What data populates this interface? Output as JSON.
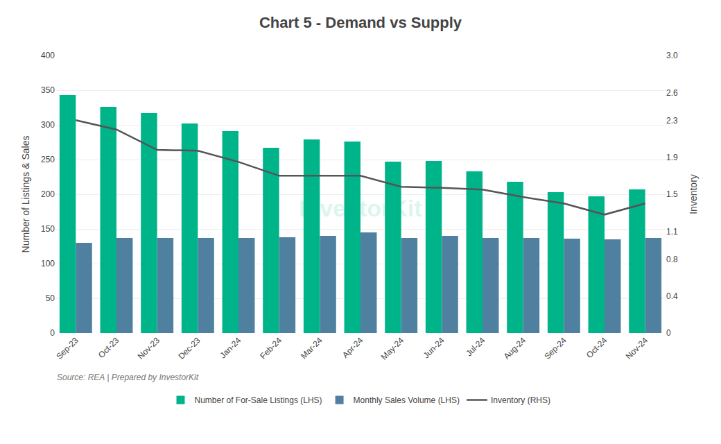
{
  "chart_data": {
    "type": "bar",
    "title": "Chart 5 - Demand vs Supply",
    "categories": [
      "Sep-23",
      "Oct-23",
      "Nov-23",
      "Dec-23",
      "Jan-24",
      "Feb-24",
      "Mar-24",
      "Apr-24",
      "May-24",
      "Jun-24",
      "Jul-24",
      "Aug-24",
      "Sep-24",
      "Oct-24",
      "Nov-24"
    ],
    "series": [
      {
        "name": "Number of For-Sale Listings (LHS)",
        "type": "bar",
        "color": "#00B48A",
        "values": [
          343,
          326,
          317,
          302,
          291,
          267,
          279,
          276,
          247,
          248,
          233,
          218,
          203,
          197,
          207
        ]
      },
      {
        "name": "Monthly Sales Volume (LHS)",
        "type": "bar",
        "color": "#5080A0",
        "values": [
          130,
          137,
          137,
          137,
          137,
          138,
          140,
          145,
          137,
          140,
          137,
          137,
          136,
          135,
          137
        ]
      },
      {
        "name": "Inventory (RHS)",
        "type": "line",
        "color": "#555555",
        "axis": "y2",
        "values": [
          2.3,
          2.2,
          1.98,
          1.97,
          1.85,
          1.7,
          1.7,
          1.7,
          1.58,
          1.57,
          1.55,
          1.47,
          1.4,
          1.28,
          1.4
        ]
      }
    ],
    "ylabel": "Number of Listings & Sales",
    "y2label": "Inventory",
    "ylim": [
      0,
      400
    ],
    "yticks": [
      0,
      50,
      100,
      150,
      200,
      250,
      300,
      350,
      400
    ],
    "y2lim": [
      0,
      3.0
    ],
    "y2ticks": [
      0,
      0.4,
      0.8,
      1.1,
      1.5,
      1.9,
      2.3,
      2.6,
      {
        "value": 3.0,
        "label": "3.0"
      }
    ],
    "grid": true,
    "legend": "bottom",
    "annotations": [
      "Source: REA | Prepared by InvestorKit",
      "InvestorKit"
    ]
  }
}
